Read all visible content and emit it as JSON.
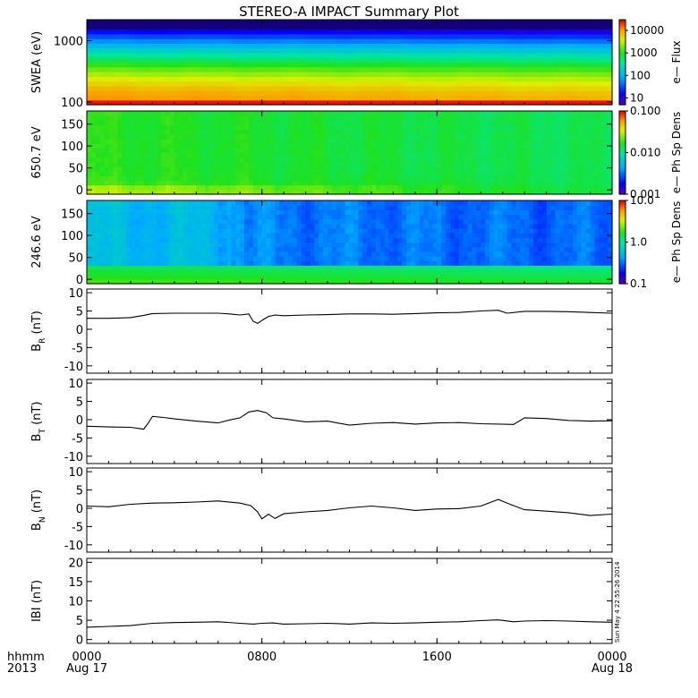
{
  "title": "STEREO-A IMPACT Summary Plot",
  "stamp": "Sun May  4 22:55:26 2014",
  "time_axis": {
    "row1_label": "hhmm",
    "row2_label": "2013",
    "ticks": [
      {
        "hours": 0,
        "label": "0000",
        "date": "Aug 17"
      },
      {
        "hours": 8,
        "label": "0800",
        "date": ""
      },
      {
        "hours": 16,
        "label": "1600",
        "date": ""
      },
      {
        "hours": 24,
        "label": "0000",
        "date": "Aug 18"
      }
    ]
  },
  "chart_data": [
    {
      "type": "heatmap",
      "ylabel": "SWEA (eV)",
      "yscale": "log",
      "ylim": [
        90,
        2200
      ],
      "yticks": [
        {
          "v": 100,
          "label": "100"
        },
        {
          "v": 1000,
          "label": "1000"
        }
      ],
      "colorbar": {
        "label": "e— Flux",
        "scale": "log",
        "range": [
          5,
          30000
        ],
        "ticks": [
          {
            "v": 10,
            "label": "10"
          },
          {
            "v": 100,
            "label": "100"
          },
          {
            "v": 1000,
            "label": "1000"
          },
          {
            "v": 10000,
            "label": "10000"
          }
        ]
      },
      "note": "flux ~10000 at 100 eV, falling to ~10 near 1500 eV; upper channels blank/dark above ~1600 eV"
    },
    {
      "type": "heatmap",
      "ylabel": "650.7 eV",
      "yscale": "linear",
      "ylim": [
        -10,
        180
      ],
      "yticks": [
        {
          "v": 0,
          "label": "0"
        },
        {
          "v": 50,
          "label": "50"
        },
        {
          "v": 100,
          "label": "100"
        },
        {
          "v": 150,
          "label": "150"
        }
      ],
      "colorbar": {
        "label": "e— Ph Sp Dens",
        "scale": "log",
        "range": [
          0.001,
          0.1
        ],
        "ticks": [
          {
            "v": 0.001,
            "label": "0.001"
          },
          {
            "v": 0.01,
            "label": "0.010"
          },
          {
            "v": 0.1,
            "label": "0.100"
          }
        ]
      },
      "note": "phase space density ~0.01-0.03 across pitch angles, slightly higher near 0 deg early in the day"
    },
    {
      "type": "heatmap",
      "ylabel": "246.6 eV",
      "yscale": "linear",
      "ylim": [
        -10,
        180
      ],
      "yticks": [
        {
          "v": 0,
          "label": "0"
        },
        {
          "v": 50,
          "label": "50"
        },
        {
          "v": 100,
          "label": "100"
        },
        {
          "v": 150,
          "label": "150"
        }
      ],
      "colorbar": {
        "label": "e— Ph Sp Dens",
        "scale": "log",
        "range": [
          0.1,
          10
        ],
        "ticks": [
          {
            "v": 0.1,
            "label": "0.1"
          },
          {
            "v": 1,
            "label": "1.0"
          },
          {
            "v": 10,
            "label": "10.0"
          }
        ]
      },
      "note": "strahl near 0 deg ~1-2; ~0.3-0.6 at 60-180 deg"
    },
    {
      "type": "line",
      "ylabel": "B",
      "ylabel_sub": "R",
      "ylabel_unit": " (nT)",
      "ylim": [
        -12,
        11
      ],
      "yticks": [
        -10,
        -5,
        0,
        5,
        10
      ],
      "x": [
        0,
        1,
        2,
        2.6,
        3,
        4,
        5,
        6,
        6.5,
        7,
        7.4,
        7.6,
        7.8,
        8.1,
        8.3,
        8.6,
        9,
        10,
        11,
        12,
        13,
        14,
        15,
        16,
        17,
        18,
        18.8,
        19.2,
        20,
        21,
        22,
        23,
        24
      ],
      "y": [
        3.0,
        3.0,
        3.2,
        3.8,
        4.3,
        4.4,
        4.4,
        4.4,
        4.2,
        3.9,
        4.2,
        2.2,
        1.6,
        2.8,
        3.5,
        3.9,
        3.7,
        3.9,
        4.0,
        4.2,
        4.2,
        4.1,
        4.3,
        4.5,
        4.6,
        5.0,
        5.2,
        4.4,
        4.9,
        4.9,
        4.8,
        4.6,
        4.4
      ]
    },
    {
      "type": "line",
      "ylabel": "B",
      "ylabel_sub": "T",
      "ylabel_unit": " (nT)",
      "ylim": [
        -12,
        11
      ],
      "yticks": [
        -10,
        -5,
        0,
        5,
        10
      ],
      "x": [
        0,
        1,
        2,
        2.6,
        2.8,
        3.0,
        3.5,
        4,
        5,
        6,
        6.5,
        7,
        7.4,
        7.8,
        8.2,
        8.5,
        9,
        10,
        11,
        12,
        13,
        14,
        15,
        16,
        17,
        18,
        19.5,
        20,
        21,
        22,
        23,
        24
      ],
      "y": [
        -1.8,
        -2.0,
        -2.1,
        -2.6,
        -1.0,
        0.9,
        0.6,
        0.2,
        -0.4,
        -0.9,
        -0.1,
        0.5,
        2.1,
        2.5,
        1.9,
        0.5,
        0.2,
        -0.6,
        -0.4,
        -1.5,
        -1.0,
        -0.8,
        -1.2,
        -0.9,
        -0.8,
        -1.1,
        -1.3,
        0.5,
        0.3,
        -0.2,
        -0.4,
        -0.3
      ]
    },
    {
      "type": "line",
      "ylabel": "B",
      "ylabel_sub": "N",
      "ylabel_unit": " (nT)",
      "ylim": [
        -12,
        11
      ],
      "yticks": [
        -10,
        -5,
        0,
        5,
        10
      ],
      "x": [
        0,
        1,
        2,
        3,
        4,
        5,
        6,
        7,
        7.5,
        7.8,
        8.0,
        8.3,
        8.6,
        9,
        10,
        11,
        12,
        13,
        14,
        15,
        16,
        17,
        18,
        18.8,
        19.3,
        20,
        21,
        22,
        23,
        24
      ],
      "y": [
        0.6,
        0.4,
        1.1,
        1.4,
        1.5,
        1.7,
        2.0,
        1.4,
        0.7,
        -1.0,
        -2.9,
        -1.6,
        -2.8,
        -1.5,
        -1.0,
        -0.6,
        0.1,
        0.6,
        0.1,
        -0.6,
        -0.2,
        -0.1,
        0.6,
        2.4,
        1.2,
        -0.4,
        -0.8,
        -1.2,
        -2.0,
        -1.6
      ]
    },
    {
      "type": "line",
      "ylabel": "IBI",
      "ylabel_sub": "",
      "ylabel_unit": " (nT)",
      "ylim": [
        -1,
        21
      ],
      "yticks": [
        0,
        5,
        10,
        15,
        20
      ],
      "x": [
        0,
        1,
        2,
        3,
        4,
        5,
        6,
        7,
        7.6,
        8,
        8.5,
        9,
        10,
        11,
        12,
        13,
        14,
        15,
        16,
        17,
        18,
        18.8,
        19.5,
        20,
        21,
        22,
        23,
        24
      ],
      "y": [
        3.2,
        3.4,
        3.6,
        4.2,
        4.4,
        4.5,
        4.6,
        4.2,
        4.0,
        4.2,
        4.3,
        4.0,
        4.1,
        4.2,
        4.0,
        4.3,
        4.2,
        4.3,
        4.5,
        4.6,
        4.9,
        5.1,
        4.6,
        4.8,
        4.9,
        4.8,
        4.6,
        4.5
      ]
    }
  ]
}
